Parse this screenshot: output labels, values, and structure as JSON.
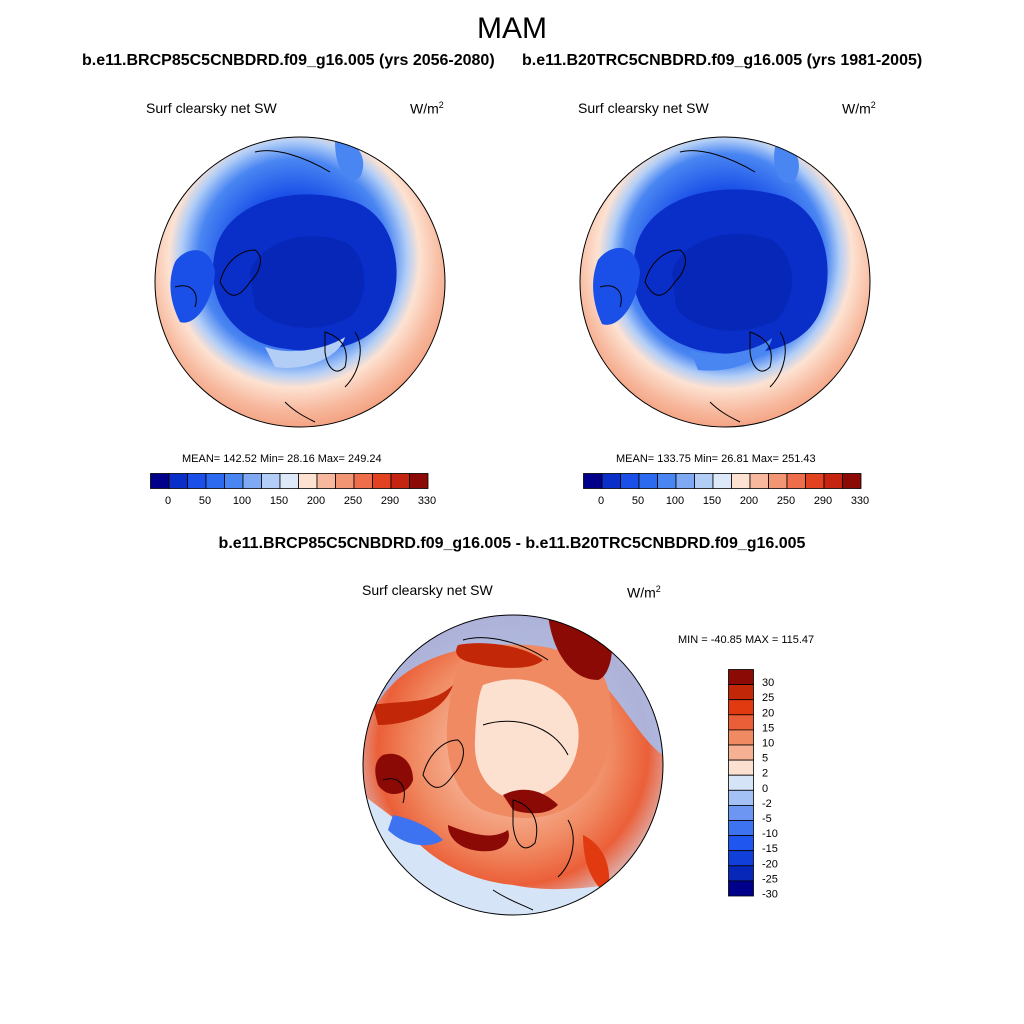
{
  "season": "MAM",
  "colors": {
    "abs_scale": [
      "#00008b",
      "#0a2fc8",
      "#1a50e8",
      "#2c6af0",
      "#4a86f2",
      "#7fa9f2",
      "#b2cef7",
      "#dde8f9",
      "#fde2d2",
      "#f7b89d",
      "#f29572",
      "#ee6d4a",
      "#e2421f",
      "#c42410",
      "#8b0a05"
    ],
    "diff_scale": [
      "#00008b",
      "#0727b8",
      "#113fd9",
      "#1e56ef",
      "#3d73f1",
      "#6c96f2",
      "#a3c1f5",
      "#d6e4f8",
      "#fce0d0",
      "#f6b194",
      "#f08a62",
      "#eb5f38",
      "#e23a10",
      "#c22708",
      "#8b0a05"
    ]
  },
  "panel_left": {
    "title": "b.e11.BRCP85C5CNBDRD.f09_g16.005 (yrs 2056-2080)",
    "variable": "Surf clearsky net SW",
    "units": "W/m",
    "units_sup": "2",
    "stats": "MEAN= 142.52  Min=  28.16  Max= 249.24"
  },
  "panel_right": {
    "title": "b.e11.B20TRC5CNBDRD.f09_g16.005 (yrs 1981-2005)",
    "variable": "Surf clearsky net SW",
    "units": "W/m",
    "units_sup": "2",
    "stats": "MEAN= 133.75  Min=  26.81  Max= 251.43"
  },
  "abs_ticks": [
    "0",
    "50",
    "100",
    "150",
    "200",
    "250",
    "290",
    "330"
  ],
  "panel_diff": {
    "title": "b.e11.BRCP85C5CNBDRD.f09_g16.005 - b.e11.B20TRC5CNBDRD.f09_g16.005",
    "variable": "Surf clearsky net SW",
    "units": "W/m",
    "units_sup": "2",
    "stats": "MIN = -40.85 MAX = 115.47",
    "ticks": [
      "30",
      "25",
      "20",
      "15",
      "10",
      "5",
      "2",
      "0",
      "-2",
      "-5",
      "-10",
      "-15",
      "-20",
      "-25",
      "-30"
    ]
  }
}
